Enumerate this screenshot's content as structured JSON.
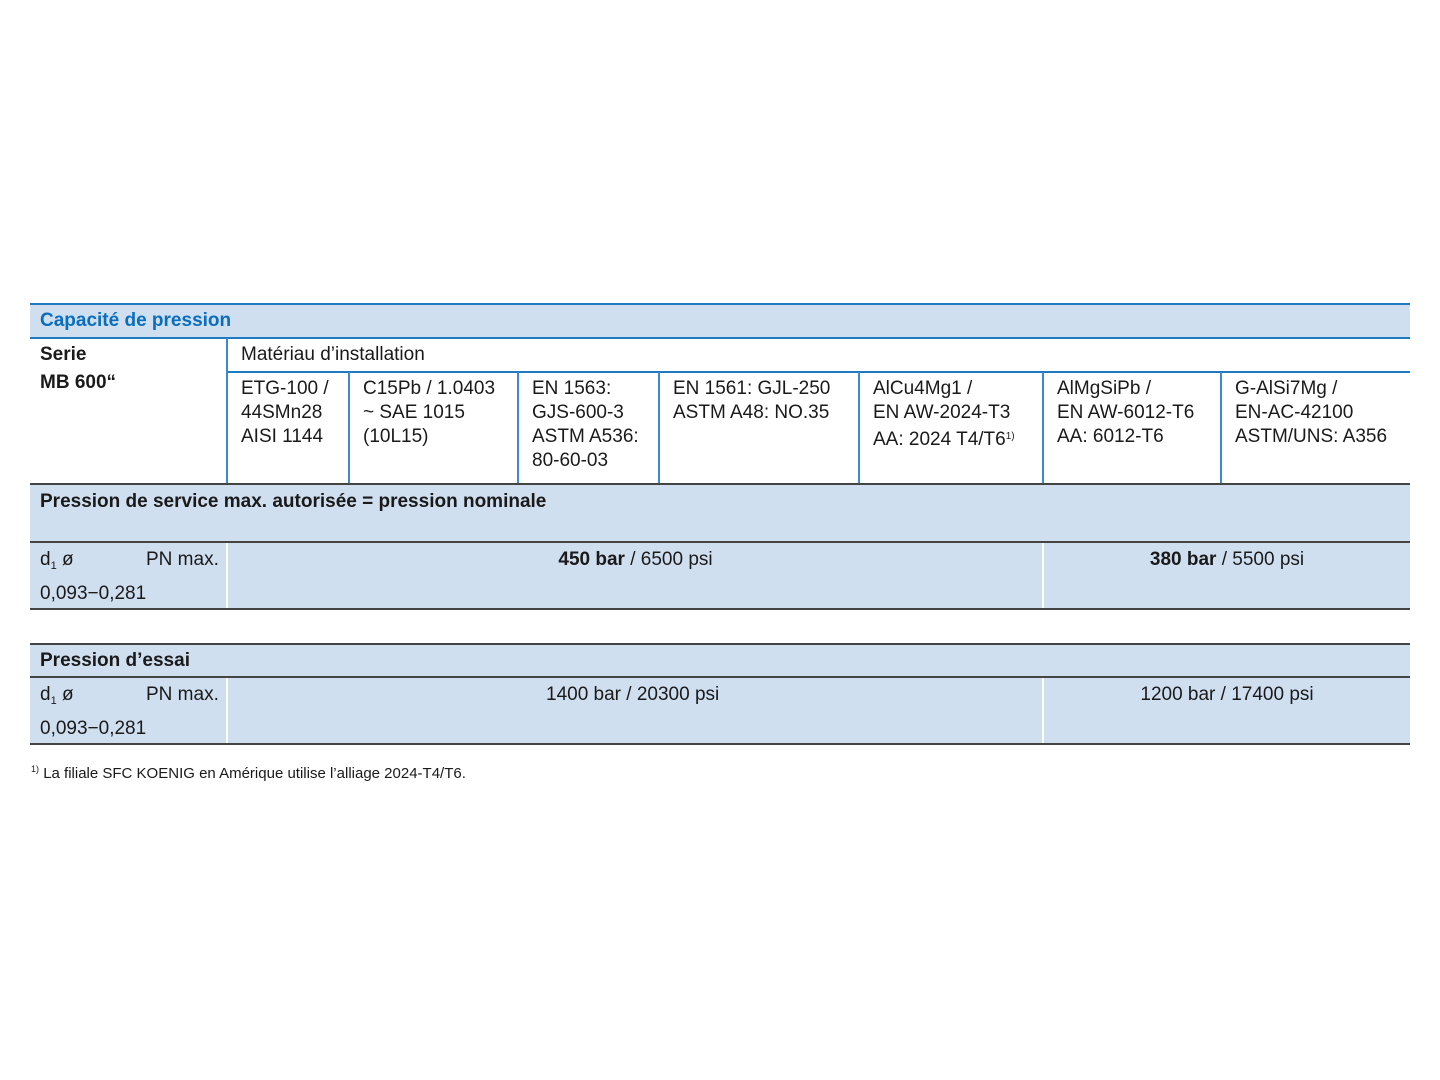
{
  "title": "Capacité de pression",
  "series_label": "Serie",
  "series_value": "MB 600“",
  "material_header": "Matériau d’installation",
  "materials": [
    [
      "ETG-100 /",
      "44SMn28",
      "AISI 1144"
    ],
    [
      "C15Pb / 1.0403",
      "~ SAE 1015",
      "(10L15)"
    ],
    [
      "EN 1563:",
      "GJS-600-3",
      "ASTM A536:",
      "80-60-03"
    ],
    [
      "EN 1561: GJL-250",
      "ASTM A48: NO.35"
    ],
    [
      "AlCu4Mg1 /",
      "EN AW-2024-T3",
      "AA: 2024 T4/T6"
    ],
    [
      "AlMgSiPb /",
      "EN AW-6012-T6",
      "AA: 6012-T6"
    ],
    [
      "G-AlSi7Mg /",
      "EN-AC-42100",
      "ASTM/UNS: A356"
    ]
  ],
  "footnote_marker": "1)",
  "service": {
    "title": "Pression de service max. autorisée = pression nominale",
    "d_label": "d",
    "d_sub": "1",
    "d_symbol": "ø",
    "pn_label": "PN max.",
    "range": "0,093−0,281",
    "value1_bold": "450 bar",
    "value1_rest": " / 6500 psi",
    "value2_bold": "380 bar",
    "value2_rest": " / 5500 psi"
  },
  "test": {
    "title": "Pression d’essai",
    "d_label": "d",
    "d_sub": "1",
    "d_symbol": "ø",
    "pn_label": "PN max.",
    "range": "0,093−0,281",
    "value1": "1400 bar / 20300 psi",
    "value2": "1200 bar / 17400 psi"
  },
  "footnote": "La filiale SFC KOENIG en Amérique utilise l’alliage 2024-T4/T6.",
  "colors": {
    "accent": "#1f7ac4",
    "band": "#d0dff0",
    "title_text": "#0a6ebd"
  }
}
